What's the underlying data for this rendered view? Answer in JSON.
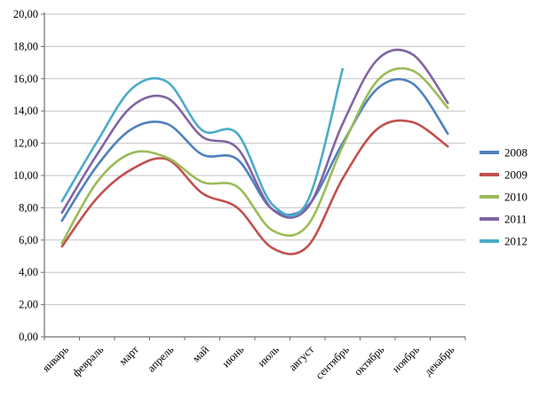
{
  "chart_data": {
    "type": "line",
    "title": "",
    "xlabel": "",
    "ylabel": "",
    "smooth": true,
    "grid": "horizontal",
    "legend_position": "right",
    "ylim": [
      0,
      20
    ],
    "ytick_step": 2,
    "ytick_labels": [
      "0,00",
      "2,00",
      "4,00",
      "6,00",
      "8,00",
      "10,00",
      "12,00",
      "14,00",
      "16,00",
      "18,00",
      "20,00"
    ],
    "categories": [
      "январь",
      "февраль",
      "март",
      "апрель",
      "май",
      "июнь",
      "июль",
      "август",
      "сентябрь",
      "октябрь",
      "ноябрь",
      "декабрь"
    ],
    "series": [
      {
        "name": "2008",
        "color": "#4F81BD",
        "values": [
          7.2,
          10.6,
          12.9,
          13.2,
          11.3,
          11.0,
          7.9,
          8.1,
          12.0,
          15.4,
          15.7,
          12.6
        ]
      },
      {
        "name": "2009",
        "color": "#C0504D",
        "values": [
          5.6,
          8.6,
          10.4,
          11.0,
          8.9,
          8.0,
          5.5,
          5.6,
          9.8,
          12.9,
          13.3,
          11.8
        ]
      },
      {
        "name": "2010",
        "color": "#9BBB59",
        "values": [
          5.8,
          9.6,
          11.4,
          11.1,
          9.6,
          9.3,
          6.6,
          6.9,
          11.8,
          15.9,
          16.5,
          14.2
        ]
      },
      {
        "name": "2011",
        "color": "#8064A2",
        "values": [
          7.7,
          11.3,
          14.3,
          14.8,
          12.4,
          11.7,
          7.9,
          8.0,
          13.2,
          17.2,
          17.5,
          14.5
        ]
      },
      {
        "name": "2012",
        "color": "#4BACC6",
        "values": [
          8.4,
          12.1,
          15.4,
          15.8,
          12.8,
          12.6,
          8.2,
          8.4,
          16.6,
          null,
          null,
          null
        ]
      }
    ],
    "colors": {
      "grid": "#c3c3c3",
      "axis": "#6e6e6e",
      "text": "#000000",
      "background": "#ffffff"
    }
  }
}
